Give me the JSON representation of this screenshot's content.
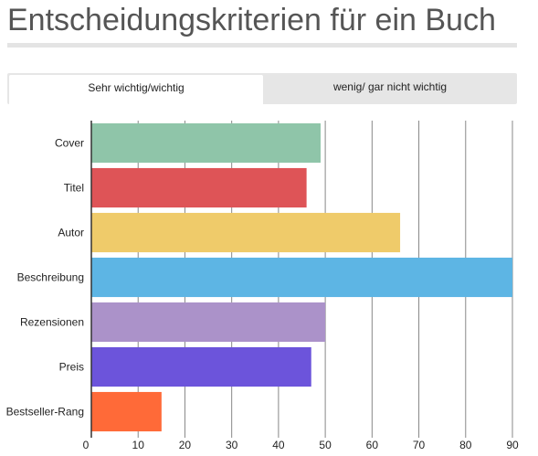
{
  "title": "Entscheidungskriterien für ein Buch",
  "tabs": [
    {
      "label": "Sehr wichtig/wichtig",
      "active": true
    },
    {
      "label": "wenig/ gar nicht wichtig",
      "active": false
    }
  ],
  "chart_data": {
    "type": "bar",
    "orientation": "horizontal",
    "categories": [
      "Cover",
      "Titel",
      "Autor",
      "Beschreibung",
      "Rezensionen",
      "Preis",
      "Bestseller-Rang"
    ],
    "values": [
      49,
      46,
      66,
      90,
      50,
      47,
      15
    ],
    "colors": [
      "#8fc5a9",
      "#de5457",
      "#efcb6a",
      "#5db5e4",
      "#ab92c9",
      "#6c54db",
      "#ff6a38"
    ],
    "xlim": [
      0,
      90
    ],
    "xticks": [
      0,
      10,
      20,
      30,
      40,
      50,
      60,
      70,
      80,
      90
    ],
    "grid": true
  }
}
